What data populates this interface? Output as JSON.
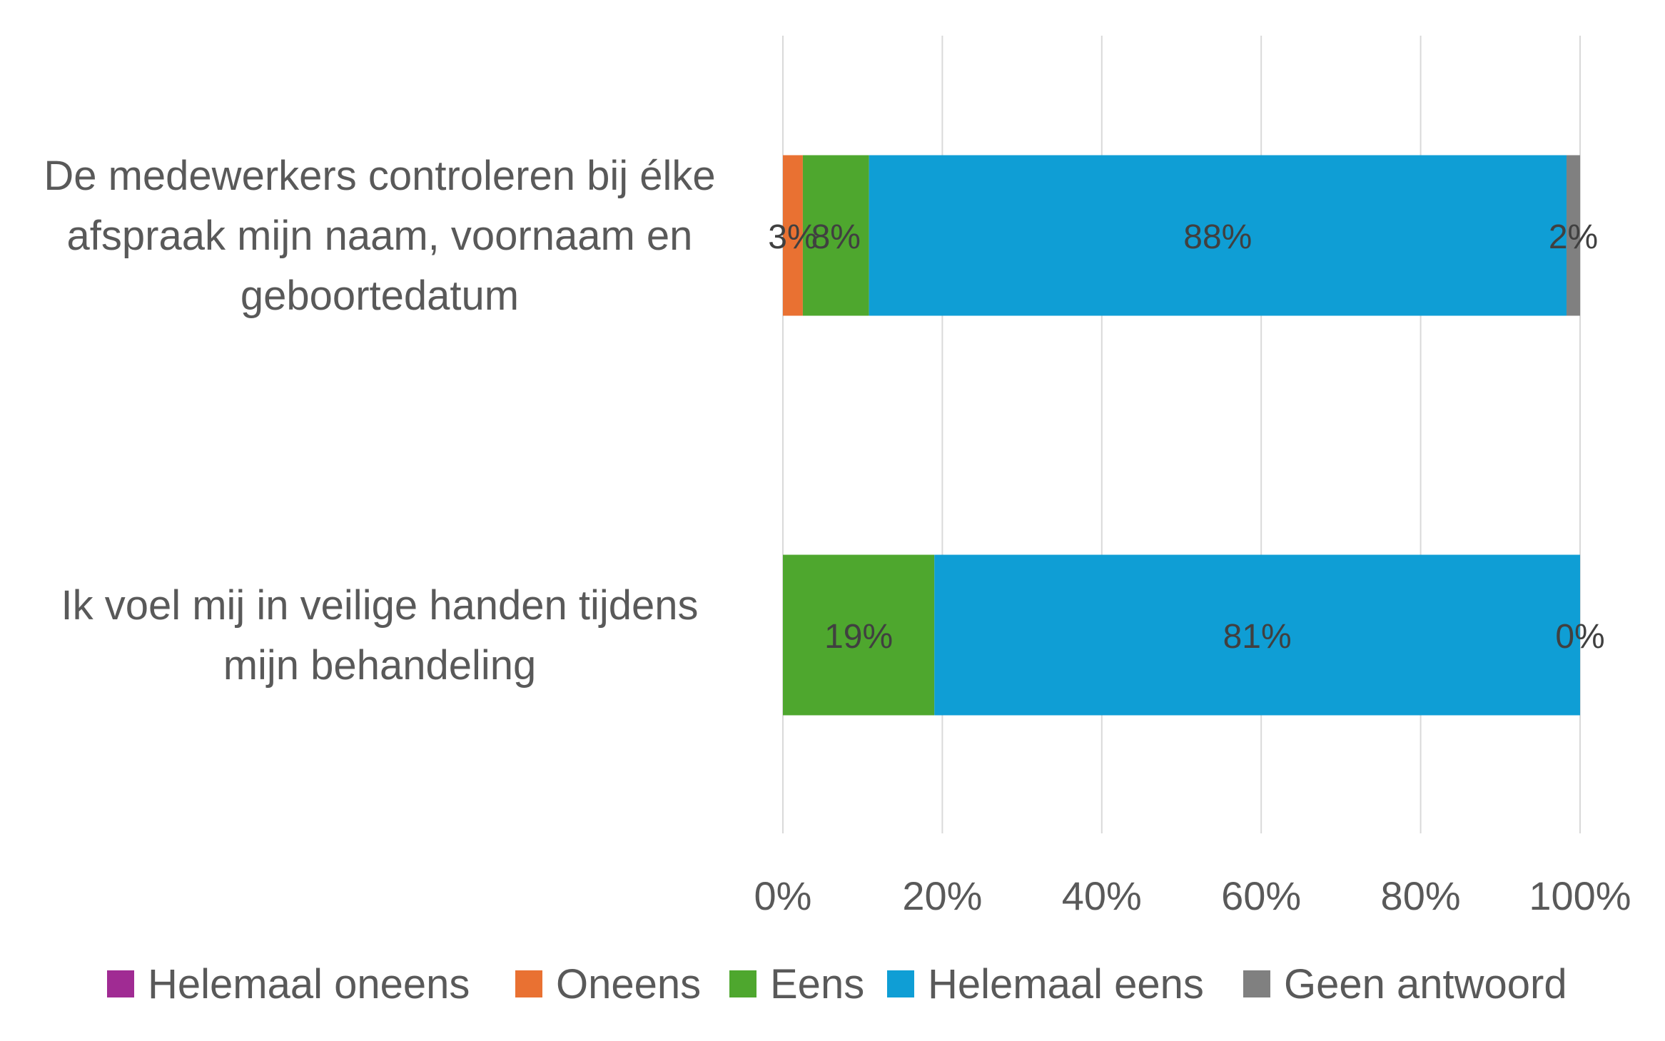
{
  "chart_data": {
    "type": "bar",
    "orientation": "horizontal",
    "stacked": "percent",
    "categories": [
      [
        "De medewerkers controleren bij élke",
        "afspraak mijn naam, voornaam en",
        "geboortedatum"
      ],
      [
        "Ik voel mij in veilige handen tijdens",
        "mijn behandeling"
      ]
    ],
    "series": [
      {
        "name": "Helemaal oneens",
        "color": "#A02B93",
        "values": [
          0,
          0
        ],
        "labels": [
          "",
          ""
        ]
      },
      {
        "name": "Oneens",
        "color": "#E97132",
        "values": [
          2.5,
          0
        ],
        "labels": [
          "3%",
          ""
        ]
      },
      {
        "name": "Eens",
        "color": "#4EA72E",
        "values": [
          8.3,
          19
        ],
        "labels": [
          "8%",
          "19%"
        ]
      },
      {
        "name": "Helemaal eens",
        "color": "#0F9ED5",
        "values": [
          87.5,
          81
        ],
        "labels": [
          "88%",
          "81%"
        ]
      },
      {
        "name": "Geen antwoord",
        "color": "#808080",
        "values": [
          1.7,
          0
        ],
        "labels": [
          "2%",
          "0%"
        ]
      }
    ],
    "xlim": [
      0,
      100
    ],
    "xticks": [
      "0%",
      "20%",
      "40%",
      "60%",
      "80%",
      "100%"
    ],
    "grid": true,
    "legend": "bottom",
    "title": "",
    "xlabel": "",
    "ylabel": ""
  }
}
